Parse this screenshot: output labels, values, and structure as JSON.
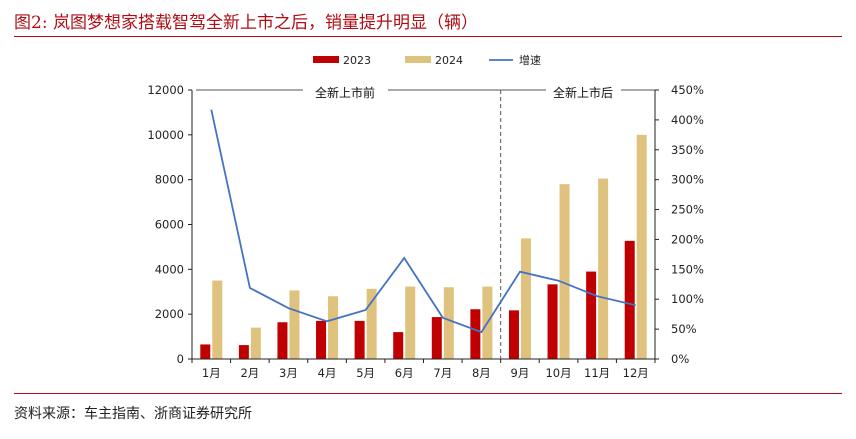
{
  "figure": {
    "title": "图2:   岚图梦想家搭载智驾全新上市之后，销量提升明显（辆）",
    "source": "资料来源：车主指南、浙商证券研究所"
  },
  "annotations": {
    "before": "全新上市前",
    "after": "全新上市后"
  },
  "colors": {
    "s2023": "#c00000",
    "s2024": "#dfc27d",
    "growth": "#4472c4",
    "rule": "#b00d14"
  },
  "chart_data": {
    "type": "bar",
    "categories": [
      "1月",
      "2月",
      "3月",
      "4月",
      "5月",
      "6月",
      "7月",
      "8月",
      "9月",
      "10月",
      "11月",
      "12月"
    ],
    "series": [
      {
        "name": "2023",
        "kind": "bar",
        "axis": "left",
        "values": [
          650,
          620,
          1640,
          1700,
          1700,
          1200,
          1870,
          2220,
          2170,
          3330,
          3900,
          5270
        ]
      },
      {
        "name": "2024",
        "kind": "bar",
        "axis": "left",
        "values": [
          3500,
          1400,
          3060,
          2800,
          3130,
          3230,
          3200,
          3230,
          5380,
          7800,
          8050,
          10000
        ]
      },
      {
        "name": "增速",
        "kind": "line",
        "axis": "right",
        "values": [
          4.17,
          1.19,
          0.85,
          0.63,
          0.82,
          1.69,
          0.69,
          0.45,
          1.46,
          1.31,
          1.05,
          0.9
        ]
      }
    ],
    "y_left": {
      "min": 0,
      "max": 12000,
      "ticks": [
        "0",
        "2000",
        "4000",
        "6000",
        "8000",
        "10000",
        "12000"
      ]
    },
    "y_right": {
      "min": 0,
      "max": 4.5,
      "ticks": [
        "0%",
        "50%",
        "100%",
        "150%",
        "200%",
        "250%",
        "300%",
        "350%",
        "400%",
        "450%"
      ]
    },
    "divider_after_category": "8月",
    "legend": "top-center",
    "grid": false
  }
}
